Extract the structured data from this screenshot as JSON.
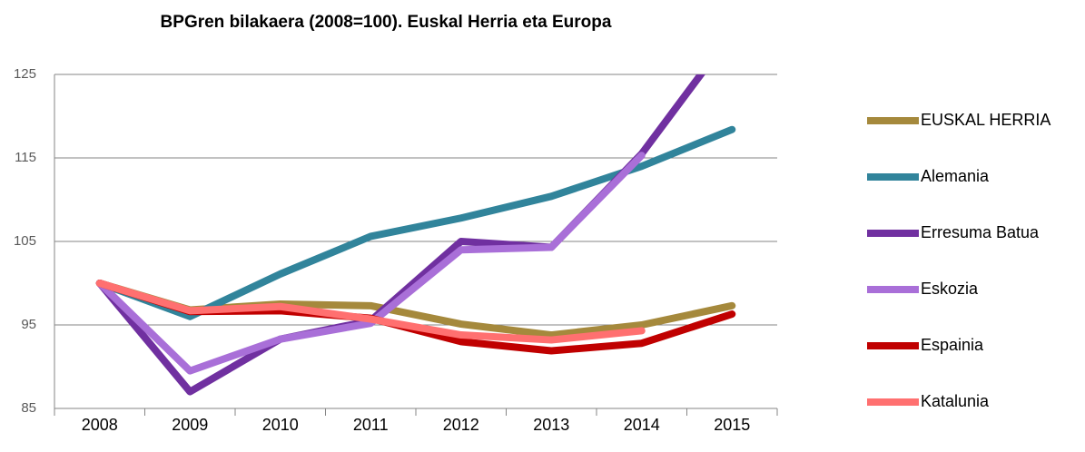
{
  "chart_data": {
    "type": "line",
    "title": "BPGren bilakaera (2008=100). Euskal Herria eta Europa",
    "categories": [
      "2008",
      "2009",
      "2010",
      "2011",
      "2012",
      "2013",
      "2014",
      "2015"
    ],
    "ylim": [
      85,
      125
    ],
    "yticks": [
      85,
      95,
      105,
      115,
      125
    ],
    "grid": true,
    "legend": "right",
    "series": [
      {
        "name": "EUSKAL HERRIA",
        "color": "#a5893c",
        "values": [
          100,
          96.8,
          97.5,
          97.3,
          95.1,
          93.8,
          95,
          97.3
        ]
      },
      {
        "name": "Alemania",
        "color": "#31849b",
        "values": [
          100,
          96,
          101.1,
          105.6,
          107.8,
          110.4,
          114,
          118.4
        ]
      },
      {
        "name": "Erresuma Batua",
        "color": "#7030a0",
        "values": [
          100,
          87,
          93.3,
          95.5,
          105,
          104.3,
          115.5,
          130
        ]
      },
      {
        "name": "Eskozia",
        "color": "#a96fd8",
        "values": [
          100,
          89.5,
          93.3,
          95.2,
          104,
          104.3,
          115.3,
          null
        ]
      },
      {
        "name": "Espainia",
        "color": "#c00000",
        "values": [
          100,
          96.6,
          96.7,
          95.8,
          93,
          91.9,
          92.8,
          96.3
        ]
      },
      {
        "name": "Katalunia",
        "color": "#ff7070",
        "values": [
          100,
          96.7,
          97.2,
          95.7,
          93.8,
          93.2,
          94.3,
          null
        ]
      }
    ]
  }
}
